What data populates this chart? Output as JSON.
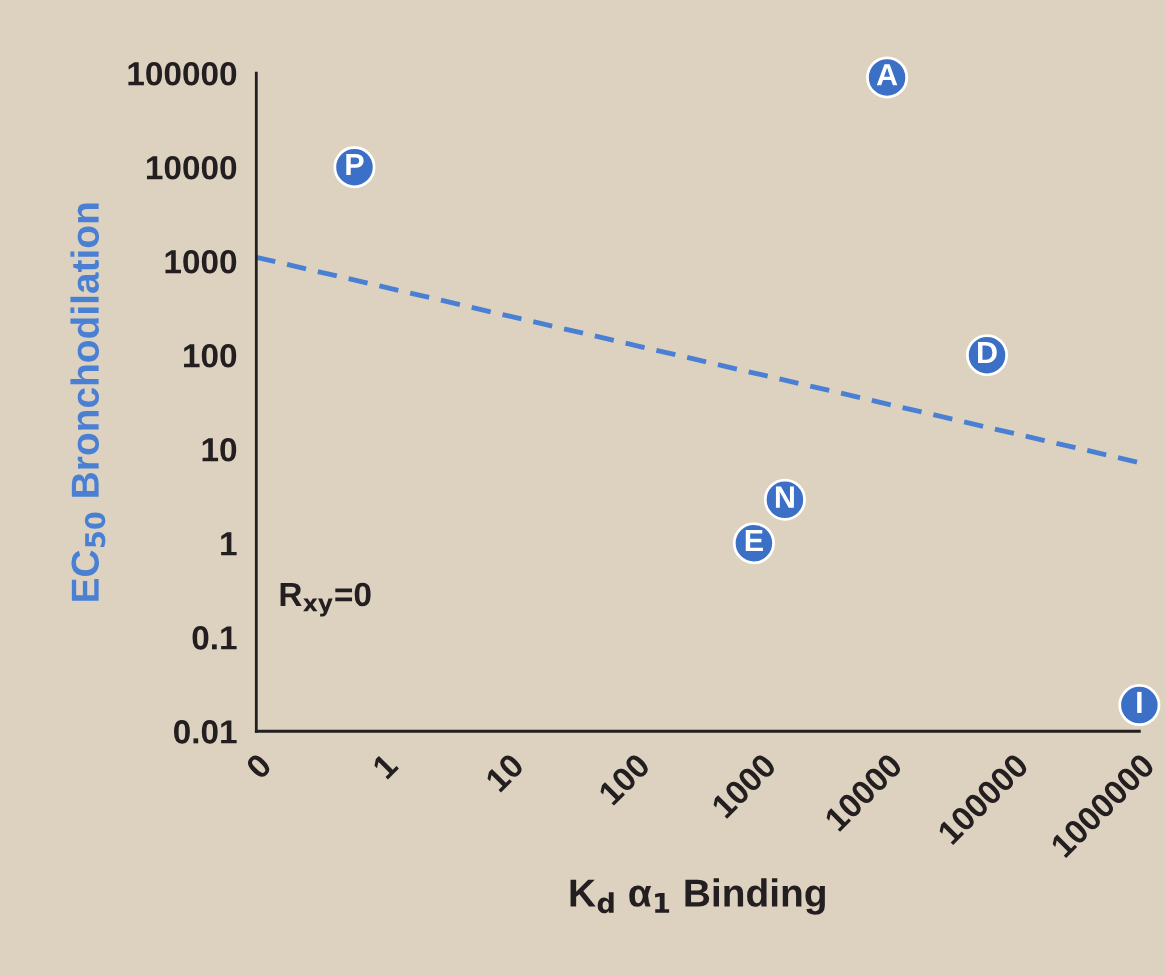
{
  "chart_data": {
    "type": "scatter",
    "xlabel": "K$_{d}$ α$_{1}$ Binding",
    "ylabel": "EC$_{50}$ Bronchodilation",
    "log": "xy",
    "grid": false,
    "xlim": [
      0.1,
      1000000
    ],
    "xticks": [
      {
        "value": 0.1,
        "label": "0"
      },
      1,
      10,
      100,
      1000,
      10000,
      100000,
      1000000
    ],
    "ylim": [
      0.01,
      100000
    ],
    "yticks": [
      0.01,
      0.1,
      1,
      10,
      100,
      1000,
      10000,
      100000
    ],
    "annotations": [
      "R$_{xy}$=0"
    ],
    "series": [
      {
        "color": "#3b70c6",
        "marker": "circle",
        "x": [
          0.6,
          10000,
          62000,
          1550,
          880,
          1000000
        ],
        "values": [
          10000,
          90000,
          100,
          2.9,
          1,
          0.019
        ],
        "value_labels": [
          "P",
          "A",
          "D",
          "N",
          "E",
          "I"
        ]
      },
      {
        "type": "line",
        "color": "#4a80d4",
        "marker": "none",
        "line_style": "dashed",
        "x": [
          0.1,
          1000000
        ],
        "values": [
          1100,
          7.2
        ]
      }
    ]
  }
}
